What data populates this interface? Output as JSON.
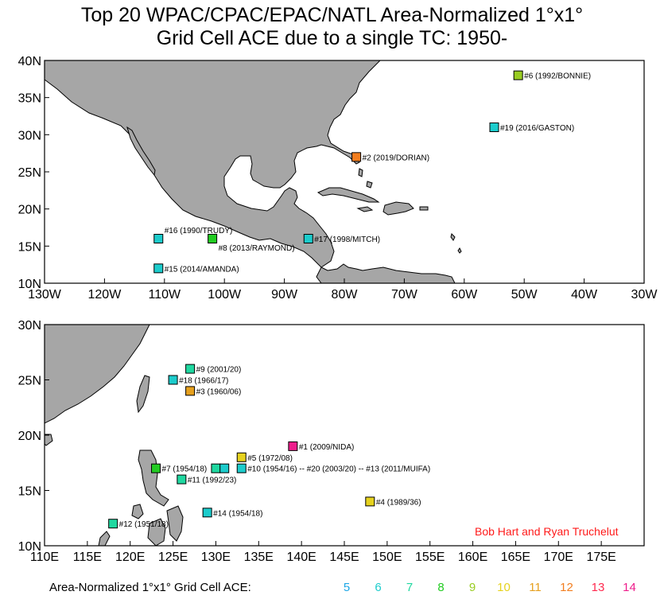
{
  "title": {
    "line1": "Top 20 WPAC/CPAC/EPAC/NATL Area-Normalized 1°x1°",
    "line2": "Grid Cell ACE due to a single TC: 1950-"
  },
  "colors": {
    "5": "#1ea7e6",
    "6": "#1ccccc",
    "7": "#1fd8a0",
    "8": "#22cc22",
    "9": "#99cc22",
    "10": "#e6d21e",
    "11": "#e6a01e",
    "12": "#f27d1e",
    "13": "#ff2a4f",
    "14": "#ee1e8c"
  },
  "chart_data": [
    {
      "type": "map-scatter",
      "region": "Atlantic / Eastern Pacific",
      "xlim": [
        -130,
        -30
      ],
      "ylim": [
        10,
        40
      ],
      "x_ticks": [
        {
          "v": -130,
          "t": "130W"
        },
        {
          "v": -120,
          "t": "120W"
        },
        {
          "v": -110,
          "t": "110W"
        },
        {
          "v": -100,
          "t": "100W"
        },
        {
          "v": -90,
          "t": "90W"
        },
        {
          "v": -80,
          "t": "80W"
        },
        {
          "v": -70,
          "t": "70W"
        },
        {
          "v": -60,
          "t": "60W"
        },
        {
          "v": -50,
          "t": "50W"
        },
        {
          "v": -40,
          "t": "40W"
        },
        {
          "v": -30,
          "t": "30W"
        }
      ],
      "y_ticks": [
        {
          "v": 10,
          "t": "10N"
        },
        {
          "v": 15,
          "t": "15N"
        },
        {
          "v": 20,
          "t": "20N"
        },
        {
          "v": 25,
          "t": "25N"
        },
        {
          "v": 30,
          "t": "30N"
        },
        {
          "v": 35,
          "t": "35N"
        },
        {
          "v": 40,
          "t": "40N"
        }
      ],
      "points": [
        {
          "lon": -51,
          "lat": 38,
          "ace": 9,
          "label": "#6 (1992/BONNIE)"
        },
        {
          "lon": -55,
          "lat": 31,
          "ace": 6,
          "label": "#19 (2016/GASTON)"
        },
        {
          "lon": -78,
          "lat": 27,
          "ace": 12,
          "label": "#2 (2019/DORIAN)"
        },
        {
          "lon": -111,
          "lat": 16,
          "ace": 6,
          "label": "#16 (1990/TRUDY)",
          "label_pos": "above"
        },
        {
          "lon": -102,
          "lat": 16,
          "ace": 8,
          "label": "#8 (2013/RAYMOND)",
          "label_pos": "below"
        },
        {
          "lon": -86,
          "lat": 16,
          "ace": 6,
          "label": "#17 (1998/MITCH)"
        },
        {
          "lon": -111,
          "lat": 12,
          "ace": 6,
          "label": "#15 (2014/AMANDA)"
        }
      ]
    },
    {
      "type": "map-scatter",
      "region": "Western Pacific",
      "xlim": [
        110,
        180
      ],
      "ylim": [
        10,
        30
      ],
      "x_ticks": [
        {
          "v": 110,
          "t": "110E"
        },
        {
          "v": 115,
          "t": "115E"
        },
        {
          "v": 120,
          "t": "120E"
        },
        {
          "v": 125,
          "t": "125E"
        },
        {
          "v": 130,
          "t": "130E"
        },
        {
          "v": 135,
          "t": "135E"
        },
        {
          "v": 140,
          "t": "140E"
        },
        {
          "v": 145,
          "t": "145E"
        },
        {
          "v": 150,
          "t": "150E"
        },
        {
          "v": 155,
          "t": "155E"
        },
        {
          "v": 160,
          "t": "160E"
        },
        {
          "v": 165,
          "t": "165E"
        },
        {
          "v": 170,
          "t": "170E"
        },
        {
          "v": 175,
          "t": "175E"
        }
      ],
      "y_ticks": [
        {
          "v": 10,
          "t": "10N"
        },
        {
          "v": 15,
          "t": "15N"
        },
        {
          "v": 20,
          "t": "20N"
        },
        {
          "v": 25,
          "t": "25N"
        },
        {
          "v": 30,
          "t": "30N"
        }
      ],
      "points": [
        {
          "lon": 127,
          "lat": 26,
          "ace": 7,
          "label": "#9 (2001/20)"
        },
        {
          "lon": 125,
          "lat": 25,
          "ace": 6,
          "label": "#18 (1966/17)"
        },
        {
          "lon": 127,
          "lat": 24,
          "ace": 11,
          "label": "#3 (1960/06)"
        },
        {
          "lon": 139,
          "lat": 19,
          "ace": 14,
          "label": "#1 (2009/NIDA)"
        },
        {
          "lon": 133,
          "lat": 18,
          "ace": 10,
          "label": "#5 (1972/08)"
        },
        {
          "lon": 123,
          "lat": 17,
          "ace": 8,
          "label": "#7 (1954/18)"
        },
        {
          "lon": 130,
          "lat": 17,
          "ace": 7,
          "label": ""
        },
        {
          "lon": 131,
          "lat": 17,
          "ace": 6,
          "label": ""
        },
        {
          "lon": 133,
          "lat": 17,
          "ace": 6,
          "label": "#10 (1954/16) -- #20 (2003/20) -- #13 (2011/MUIFA)"
        },
        {
          "lon": 126,
          "lat": 16,
          "ace": 7,
          "label": "#11 (1992/23)"
        },
        {
          "lon": 148,
          "lat": 14,
          "ace": 10,
          "label": "#4 (1989/36)"
        },
        {
          "lon": 129,
          "lat": 13,
          "ace": 6,
          "label": "#14 (1954/18)"
        },
        {
          "lon": 118,
          "lat": 12,
          "ace": 7,
          "label": "#12 (1951/18)"
        }
      ]
    }
  ],
  "credit": "Bob Hart and Ryan Truchelut",
  "legend": {
    "label": "Area-Normalized 1°x1° Grid Cell ACE:",
    "values": [
      "5",
      "6",
      "7",
      "8",
      "9",
      "10",
      "11",
      "12",
      "13",
      "14"
    ]
  }
}
